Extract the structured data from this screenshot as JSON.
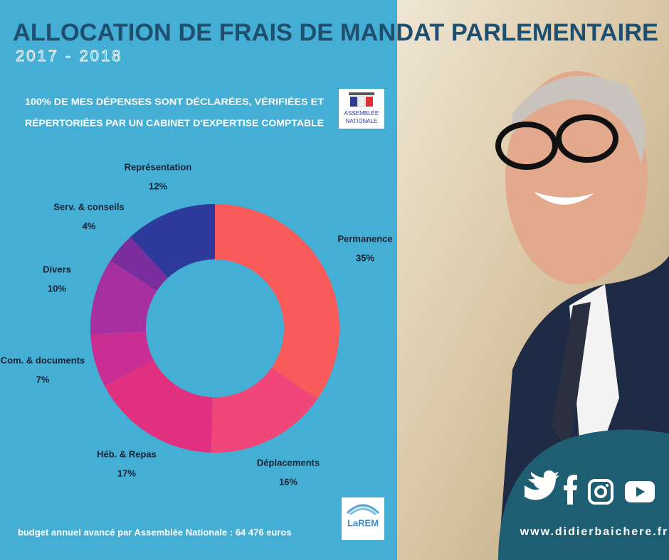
{
  "chart_data": {
    "type": "donut",
    "title": "ALLOCATION DE FRAIS DE MANDAT PARLEMENTAIRE",
    "subtitle": "2017 - 2018",
    "note": [
      "100% DE MES DÉPENSES SONT DÉCLARÉES, VÉRIFIÉES ET",
      "RÉPERTORIÉES PAR UN CABINET D'EXPERTISE COMPTABLE"
    ],
    "categories": [
      "Permanence",
      "Déplacements",
      "Héb. & Repas",
      "Com. & documents",
      "Divers",
      "Serv. & conseils",
      "Représentation"
    ],
    "values": [
      35,
      16,
      17,
      7,
      10,
      4,
      12
    ],
    "value_labels": [
      "35%",
      "16%",
      "17%",
      "7%",
      "10%",
      "4%",
      "12%"
    ],
    "colors": [
      "#f95a5a",
      "#f1467a",
      "#e0307f",
      "#cb2e93",
      "#a6309f",
      "#7a2e9d",
      "#2e399c"
    ]
  },
  "logos": {
    "assemblee": [
      "ASSEMBLÉE",
      "NATIONALE"
    ],
    "larem": "LaREM"
  },
  "footer": "budget annuel avancé par Assemblée Nationale : 64 476 euros",
  "website": "www.didierbaichere.fr"
}
